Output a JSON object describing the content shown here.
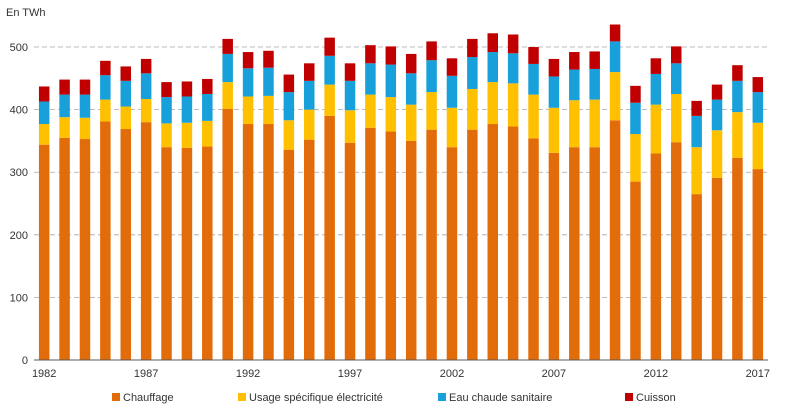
{
  "chart_data": {
    "type": "bar",
    "stacked": true,
    "title": "",
    "unit_label": "En TWh",
    "xlabel": "",
    "ylabel": "",
    "ylim": [
      0,
      540
    ],
    "y_ticks": [
      0,
      100,
      200,
      300,
      400,
      500
    ],
    "x": [
      1982,
      1983,
      1984,
      1985,
      1986,
      1987,
      1988,
      1989,
      1990,
      1991,
      1992,
      1993,
      1994,
      1995,
      1996,
      1997,
      1998,
      1999,
      2000,
      2001,
      2002,
      2003,
      2004,
      2005,
      2006,
      2007,
      2008,
      2009,
      2010,
      2011,
      2012,
      2013,
      2014,
      2015,
      2016,
      2017
    ],
    "x_tick_labels": [
      "1982",
      "1987",
      "1992",
      "1997",
      "2002",
      "2007",
      "2012",
      "2017"
    ],
    "series": [
      {
        "name": "Chauffage",
        "color": "#e36c0a",
        "values": [
          344,
          355,
          353,
          381,
          369,
          380,
          340,
          339,
          341,
          401,
          377,
          377,
          336,
          352,
          390,
          347,
          371,
          365,
          350,
          368,
          340,
          368,
          377,
          373,
          354,
          331,
          340,
          340,
          383,
          285,
          330,
          348,
          265,
          291,
          323,
          305
        ]
      },
      {
        "name": "Usage spécifique électricité",
        "color": "#ffc000",
        "values": [
          33,
          33,
          34,
          35,
          36,
          37,
          38,
          40,
          41,
          43,
          44,
          45,
          47,
          48,
          50,
          52,
          53,
          55,
          58,
          60,
          63,
          65,
          67,
          69,
          70,
          72,
          75,
          76,
          77,
          76,
          78,
          77,
          75,
          76,
          73,
          74
        ]
      },
      {
        "name": "Eau chaude sanitaire",
        "color": "#17a0d9",
        "values": [
          36,
          36,
          37,
          39,
          41,
          41,
          42,
          42,
          43,
          45,
          45,
          45,
          45,
          46,
          46,
          47,
          50,
          52,
          50,
          51,
          51,
          51,
          48,
          48,
          49,
          50,
          49,
          49,
          49,
          50,
          49,
          49,
          50,
          49,
          50,
          49
        ]
      },
      {
        "name": "Cuisson",
        "color": "#c00000",
        "values": [
          24,
          24,
          24,
          23,
          23,
          23,
          24,
          24,
          24,
          24,
          26,
          27,
          28,
          28,
          29,
          28,
          29,
          29,
          31,
          30,
          28,
          29,
          30,
          30,
          27,
          28,
          28,
          28,
          27,
          27,
          25,
          27,
          24,
          24,
          25,
          24
        ]
      }
    ],
    "gridlines": "horizontal-dashed",
    "legend_position": "bottom"
  }
}
